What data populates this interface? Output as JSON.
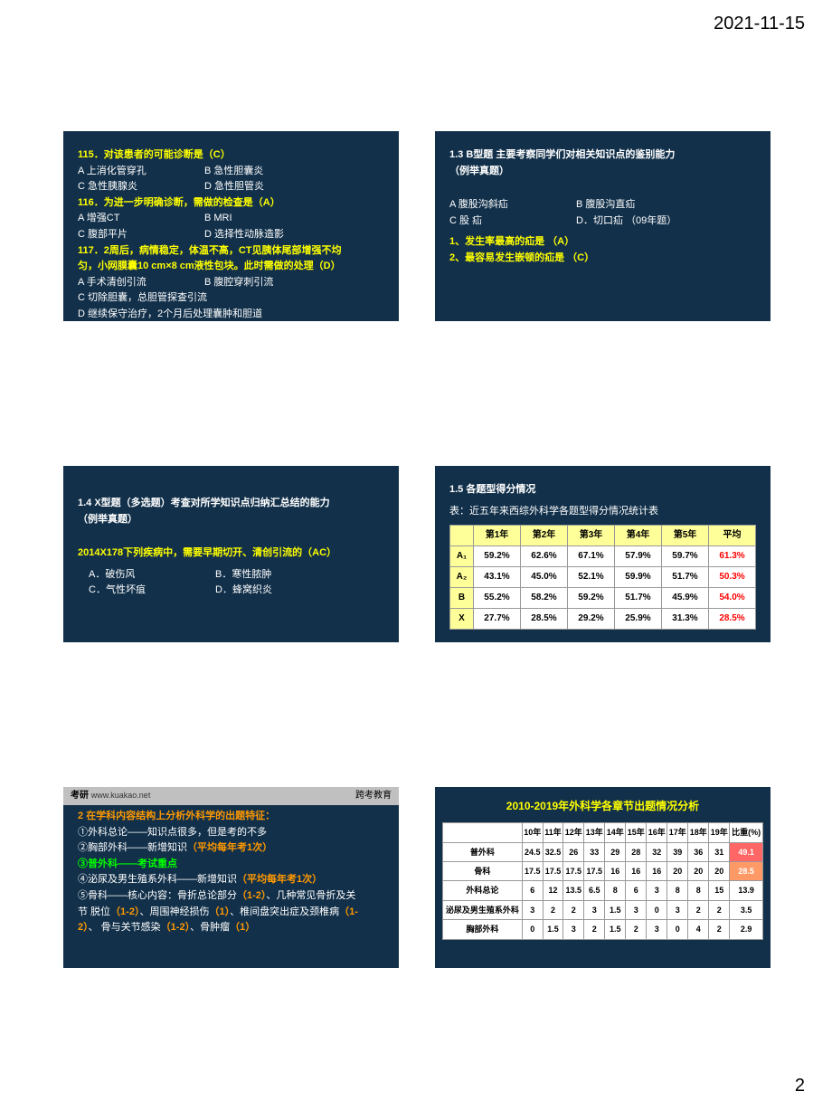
{
  "page": {
    "date": "2021-11-15",
    "number": "2"
  },
  "slide1": {
    "q115": "115．对该患者的可能诊断是（C）",
    "q115a": "A  上消化管穿孔",
    "q115b": "B  急性胆囊炎",
    "q115c": "C  急性胰腺炎",
    "q115d": "D  急性胆管炎",
    "q116": "116．为进一步明确诊断，需做的检查是（A）",
    "q116a": "A  增强CT",
    "q116b": "B  MRI",
    "q116c": "C  腹部平片",
    "q116d": "D  选择性动脉造影",
    "q117a": "117．2周后，病情稳定，体温不高，CT见胰体尾部增强不均",
    "q117b": "匀，小网膜囊10 cm×8 cm液性包块。此时需做的处理（D）",
    "q117oa": "A  手术清创引流",
    "q117ob": "B  腹腔穿刺引流",
    "q117oc": "C 切除胆囊，总胆管探查引流",
    "q117od": "D 继续保守治疗，2个月后处理囊肿和胆道"
  },
  "slide2": {
    "title1": "1.3 B型题  主要考察同学们对相关知识点的鉴别能力",
    "title2": "（例举真题）",
    "optA": "A  腹股沟斜疝",
    "optB": "B 腹股沟直疝",
    "optC": "C 股 疝",
    "optD": "D．切口疝  （09年题）",
    "q1": "1、发生率最高的疝是  （A）",
    "q2": "2、最容易发生嵌顿的疝是  （C）"
  },
  "slide3": {
    "title1": "1.4 X型题（多选题）考查对所学知识点归纳汇总结的能力",
    "title2": "（例举真题）",
    "stem": "2014X178下列疾病中，需要早期切开、清创引流的（AC）",
    "optA": "A．破伤风",
    "optB": "B．寒性脓肿",
    "optC": "C．气性坏疽",
    "optD": "D．蜂窝织炎"
  },
  "slide5": {
    "title": "1.5 各题型得分情况",
    "caption": "表：近五年来西综外科学各题型得分情况统计表",
    "headers": [
      "",
      "第1年",
      "第2年",
      "第3年",
      "第4年",
      "第5年",
      "平均"
    ],
    "rows": [
      [
        "A₁",
        "59.2%",
        "62.6%",
        "67.1%",
        "57.9%",
        "59.7%",
        "61.3%"
      ],
      [
        "A₂",
        "43.1%",
        "45.0%",
        "52.1%",
        "59.9%",
        "51.7%",
        "50.3%"
      ],
      [
        "B",
        "55.2%",
        "58.2%",
        "59.2%",
        "51.7%",
        "45.9%",
        "54.0%"
      ],
      [
        "X",
        "27.7%",
        "28.5%",
        "29.2%",
        "25.9%",
        "31.3%",
        "28.5%"
      ]
    ]
  },
  "slide6l": {
    "logo": "考研",
    "url": "www.kuakao.net",
    "brand": "跨考教育",
    "heading": "2 在学科内容结构上分析外科学的出题特征：",
    "l1": "①外科总论——知识点很多，但是考的不多",
    "l2a": "②胸部外科——新增知识",
    "l2b": "（平均每年考1次）",
    "l3": "③普外科——考试重点",
    "l4a": "④泌尿及男生殖系外科——新增知识",
    "l4b": "（平均每年考1次）",
    "l5a": "⑤骨科——核心内容：骨折总论部分",
    "l5b": "（1-2）",
    "l5c": "、几种常见骨折及关",
    "l5d": "节 脱位",
    "l5e": "（1-2）",
    "l5f": "、周围神经损伤",
    "l5g": "（1）",
    "l5h": "、椎间盘突出症及颈椎病",
    "l5i": "（1-",
    "l5j": "2）",
    "l5k": "、 骨与关节感染",
    "l5l": "（1-2）",
    "l5m": "、骨肿瘤",
    "l5n": "（1）"
  },
  "slide6r": {
    "title": "2010-2019年外科学各章节出题情况分析",
    "headers": [
      "",
      "10年",
      "11年",
      "12年",
      "13年",
      "14年",
      "15年",
      "16年",
      "17年",
      "18年",
      "19年",
      "比重(%)"
    ],
    "rows": [
      [
        "普外科",
        "24.5",
        "32.5",
        "26",
        "33",
        "29",
        "28",
        "32",
        "39",
        "36",
        "31",
        "49.1"
      ],
      [
        "骨科",
        "17.5",
        "17.5",
        "17.5",
        "17.5",
        "16",
        "16",
        "16",
        "20",
        "20",
        "20",
        "28.5"
      ],
      [
        "外科总论",
        "6",
        "12",
        "13.5",
        "6.5",
        "8",
        "6",
        "3",
        "8",
        "8",
        "15",
        "13.9"
      ],
      [
        "泌尿及男生殖系外科",
        "3",
        "2",
        "2",
        "3",
        "1.5",
        "3",
        "0",
        "3",
        "2",
        "2",
        "3.5"
      ],
      [
        "胸部外科",
        "0",
        "1.5",
        "3",
        "2",
        "1.5",
        "2",
        "3",
        "0",
        "4",
        "2",
        "2.9"
      ]
    ]
  }
}
